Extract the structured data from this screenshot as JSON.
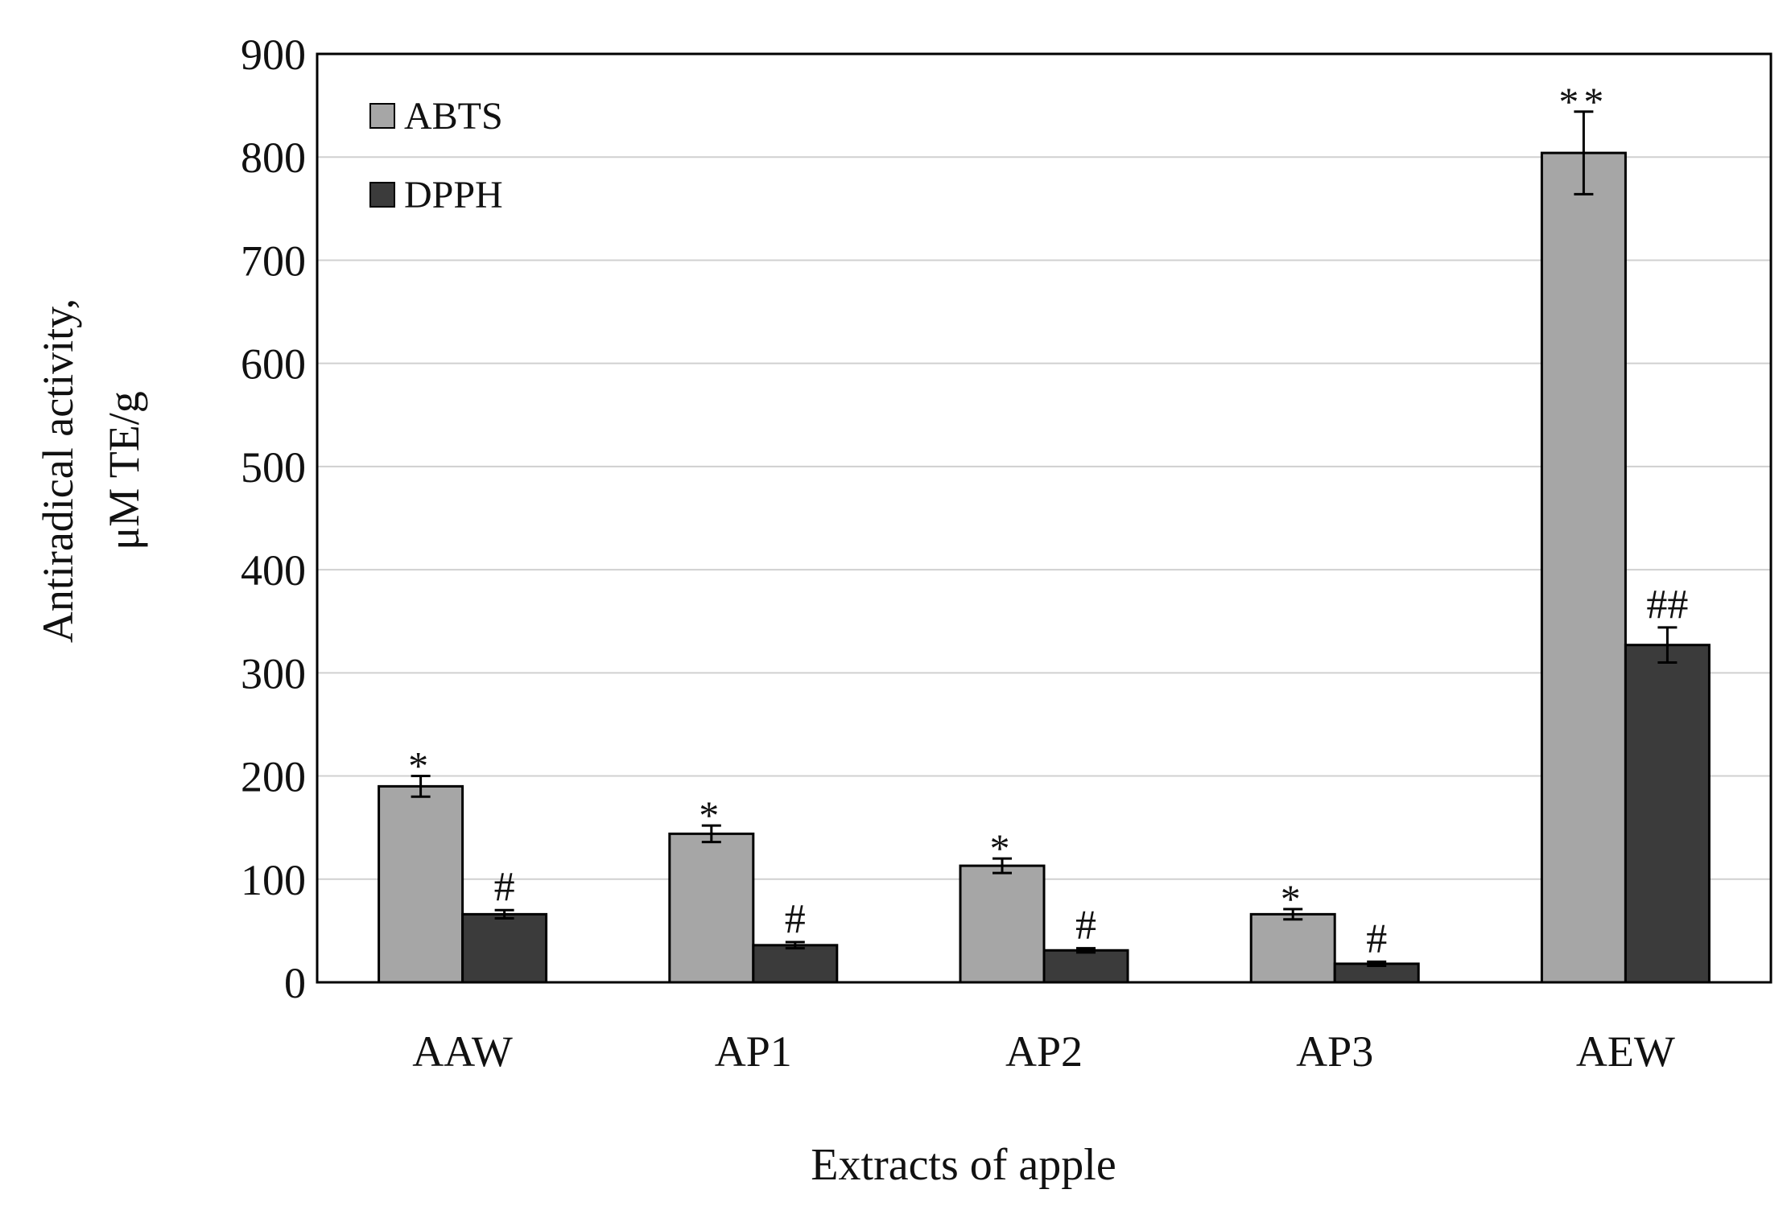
{
  "chart_data": {
    "type": "bar",
    "xlabel": "Extracts of apple",
    "ylabel_line1": "Antiradical activity,",
    "ylabel_line2": "μM TE/g",
    "ylim": [
      0,
      900
    ],
    "yticks": [
      0,
      100,
      200,
      300,
      400,
      500,
      600,
      700,
      800,
      900
    ],
    "grid": true,
    "legend_position": "top-left",
    "categories": [
      "AAW",
      "AP1",
      "AP2",
      "AP3",
      "AEW"
    ],
    "series": [
      {
        "name": "ABTS",
        "color": "#a6a6a6",
        "values": [
          190,
          144,
          113,
          66,
          804
        ],
        "errors": [
          10,
          8,
          7,
          5,
          40
        ],
        "markers": [
          "*",
          "*",
          "*",
          "*",
          "**"
        ]
      },
      {
        "name": "DPPH",
        "color": "#3b3b3b",
        "values": [
          66,
          36,
          31,
          18,
          327
        ],
        "errors": [
          4,
          3,
          2,
          2,
          17
        ],
        "markers": [
          "#",
          "#",
          "#",
          "#",
          "##"
        ]
      }
    ]
  }
}
